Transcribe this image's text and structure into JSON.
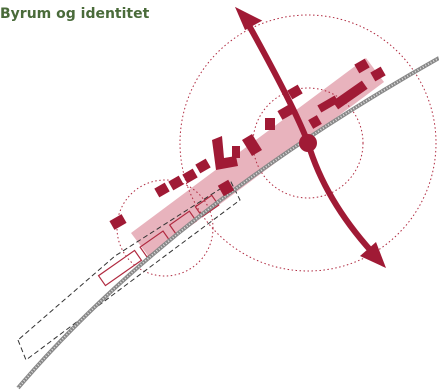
{
  "header": {
    "title": "Byrum og identitet"
  }
}
